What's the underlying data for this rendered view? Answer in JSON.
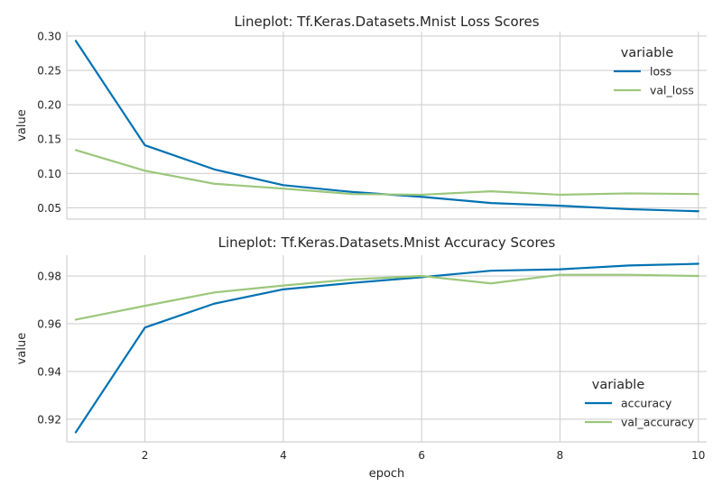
{
  "chart_data": [
    {
      "type": "line",
      "title": "Lineplot: Tf.Keras.Datasets.Mnist Loss Scores",
      "xlabel": "",
      "ylabel": "value",
      "x": [
        1,
        2,
        3,
        4,
        5,
        6,
        7,
        8,
        9,
        10
      ],
      "xlim": [
        0.87,
        10.12
      ],
      "ylim": [
        0.0335,
        0.3065
      ],
      "xticks": [
        2,
        4,
        6,
        8,
        10
      ],
      "xtick_labels_shown": false,
      "yticks": [
        0.05,
        0.1,
        0.15,
        0.2,
        0.25,
        0.3
      ],
      "ytick_labels": [
        "0.05",
        "0.10",
        "0.15",
        "0.20",
        "0.25",
        "0.30"
      ],
      "grid": true,
      "legend": {
        "title": "variable",
        "placement": "top-right"
      },
      "series": [
        {
          "name": "loss",
          "color": "#0072b2",
          "values": [
            0.293,
            0.141,
            0.106,
            0.083,
            0.073,
            0.066,
            0.057,
            0.053,
            0.048,
            0.045
          ]
        },
        {
          "name": "val_loss",
          "color": "#9bc77b",
          "values": [
            0.134,
            0.104,
            0.085,
            0.078,
            0.07,
            0.069,
            0.074,
            0.069,
            0.071,
            0.07
          ]
        }
      ]
    },
    {
      "type": "line",
      "title": "Lineplot: Tf.Keras.Datasets.Mnist Accuracy Scores",
      "xlabel": "epoch",
      "ylabel": "value",
      "x": [
        1,
        2,
        3,
        4,
        5,
        6,
        7,
        8,
        9,
        10
      ],
      "xlim": [
        0.87,
        10.12
      ],
      "ylim": [
        0.9105,
        0.9887
      ],
      "xticks": [
        2,
        4,
        6,
        8,
        10
      ],
      "xtick_labels": [
        "2",
        "4",
        "6",
        "8",
        "10"
      ],
      "xtick_labels_shown": true,
      "yticks": [
        0.92,
        0.94,
        0.96,
        0.98
      ],
      "ytick_labels": [
        "0.92",
        "0.94",
        "0.96",
        "0.98"
      ],
      "grid": true,
      "legend": {
        "title": "variable",
        "placement": "bottom-right"
      },
      "series": [
        {
          "name": "accuracy",
          "color": "#0072b2",
          "values": [
            0.9145,
            0.9584,
            0.9684,
            0.9744,
            0.9771,
            0.9795,
            0.9822,
            0.9828,
            0.9844,
            0.9851
          ]
        },
        {
          "name": "val_accuracy",
          "color": "#9bc77b",
          "values": [
            0.9617,
            0.9675,
            0.9731,
            0.976,
            0.9786,
            0.98,
            0.9769,
            0.9805,
            0.9805,
            0.98
          ]
        }
      ]
    }
  ]
}
